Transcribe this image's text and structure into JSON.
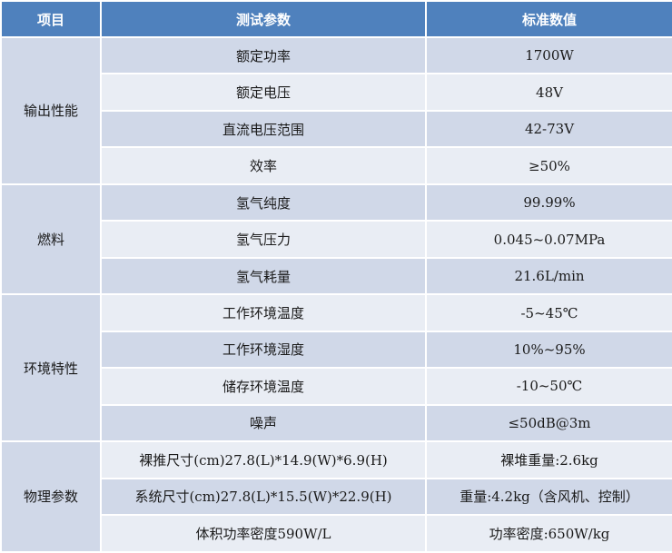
{
  "header": {
    "col1": "项目",
    "col2": "测试参数",
    "col3": "标准数值"
  },
  "groups": [
    {
      "category": "输出性能",
      "rows": [
        {
          "param": "额定功率",
          "value": "1700W"
        },
        {
          "param": "额定电压",
          "value": "48V"
        },
        {
          "param": "直流电压范围",
          "value": "42-73V"
        },
        {
          "param": "效率",
          "value": "≥50%"
        }
      ]
    },
    {
      "category": "燃料",
      "rows": [
        {
          "param": "氢气纯度",
          "value": "99.99%"
        },
        {
          "param": "氢气压力",
          "value": "0.045~0.07MPa"
        },
        {
          "param": "氢气耗量",
          "value": "21.6L/min"
        }
      ]
    },
    {
      "category": "环境特性",
      "rows": [
        {
          "param": "工作环境温度",
          "value": "-5~45℃"
        },
        {
          "param": "工作环境湿度",
          "value": "10%~95%"
        },
        {
          "param": "储存环境温度",
          "value": "-10~50℃"
        },
        {
          "param": "噪声",
          "value": "≤50dB@3m"
        }
      ]
    },
    {
      "category": "物理参数",
      "rows": [
        {
          "param": "裸推尺寸(cm)27.8(L)*14.9(W)*6.9(H)",
          "value": "裸堆重量:2.6kg"
        },
        {
          "param": "系统尺寸(cm)27.8(L)*15.5(W)*22.9(H)",
          "value": "重量:4.2kg（含风机、控制）"
        },
        {
          "param": "体积功率密度590W/L",
          "value": "功率密度:650W/kg"
        }
      ]
    }
  ]
}
